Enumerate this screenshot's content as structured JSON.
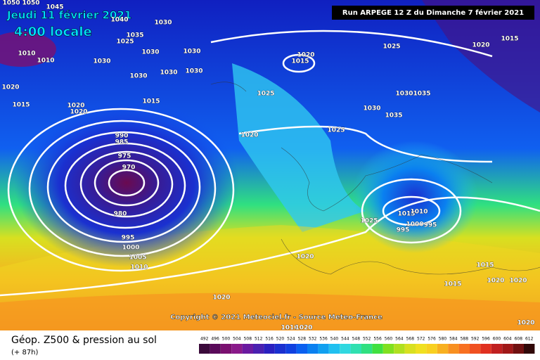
{
  "header": {
    "date": "Jeudi 11 février 2021",
    "time": "4:00 locale",
    "run": "Run ARPEGE 12 Z du Dimanche 7 février 2021"
  },
  "copyright": "Copyright © 2021 Meteociel.fr - Source Meteo-France",
  "footer": {
    "title": "Géop. Z500 & pression au sol",
    "lead": "(+ 87h)"
  },
  "scale": {
    "values": [
      492,
      496,
      500,
      504,
      508,
      512,
      516,
      520,
      524,
      528,
      532,
      536,
      540,
      544,
      548,
      552,
      556,
      560,
      564,
      568,
      572,
      576,
      580,
      584,
      588,
      592,
      596,
      600,
      604,
      608,
      612
    ],
    "colors": [
      "#3a0a3a",
      "#5a0a5a",
      "#7a1070",
      "#8a1a8a",
      "#6a1aa0",
      "#4a20b0",
      "#2a20c0",
      "#1a30d0",
      "#1040e0",
      "#0a60f0",
      "#0a80f0",
      "#10a0f0",
      "#20c0f0",
      "#30d8e0",
      "#30e0b0",
      "#30e080",
      "#40e040",
      "#80e020",
      "#b0e020",
      "#d8e020",
      "#f0e020",
      "#f8d020",
      "#f8b020",
      "#f89020",
      "#f87020",
      "#f05020",
      "#e03020",
      "#c02020",
      "#a01818",
      "#701010",
      "#300808"
    ]
  },
  "isobars": [
    "1050",
    "1050",
    "1045",
    "1040",
    "1035",
    "1025",
    "1030",
    "1030",
    "1030",
    "1030",
    "1030",
    "1030",
    "1030",
    "1010",
    "1010",
    "1020",
    "1015",
    "1020",
    "1020",
    "1015",
    "1025",
    "1020",
    "1015",
    "1025",
    "1020",
    "1015",
    "1030",
    "1035",
    "1030",
    "1035",
    "1025",
    "1020",
    "990",
    "985",
    "975",
    "970",
    "980",
    "995",
    "1000",
    "1005",
    "1010",
    "1020",
    "1020",
    "1025",
    "1015",
    "1010",
    "995",
    "1000",
    "995",
    "1015",
    "1015",
    "1020",
    "1020",
    "1020",
    "1010",
    "1020"
  ]
}
